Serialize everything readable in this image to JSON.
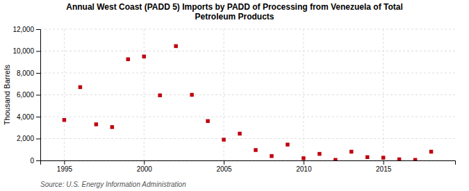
{
  "chart_data": {
    "type": "scatter",
    "title": "Annual West Coast (PADD 5) Imports by PADD of Processing from Venezuela of Total\nPetroleum Products",
    "ylabel": "Thousand Barrels",
    "annotations": [
      "Source: U.S. Energy Information Administration"
    ],
    "x": [
      1995,
      1996,
      1997,
      1998,
      1999,
      2000,
      2001,
      2002,
      2003,
      2004,
      2005,
      2006,
      2007,
      2008,
      2009,
      2010,
      2011,
      2012,
      2013,
      2014,
      2015,
      2016,
      2017,
      2018
    ],
    "values": [
      3700,
      6700,
      3300,
      3050,
      9250,
      9500,
      5950,
      10450,
      6000,
      3600,
      1900,
      2450,
      950,
      400,
      1450,
      200,
      600,
      50,
      800,
      300,
      250,
      100,
      50,
      800
    ],
    "color": "#c00010",
    "marker": "square",
    "xlim": [
      1993.5,
      2019.5
    ],
    "xticks": [
      1995,
      2000,
      2005,
      2010,
      2015
    ],
    "ylim": [
      0,
      12000
    ],
    "yticks": [
      0,
      {
        "value": 2000,
        "label": "2,000"
      },
      {
        "value": 4000,
        "label": "4,000"
      },
      {
        "value": 6000,
        "label": "6,000"
      },
      {
        "value": 8000,
        "label": "8,000"
      },
      {
        "value": 10000,
        "label": "10,000"
      },
      {
        "value": 12000,
        "label": "12,000"
      }
    ],
    "grid": true
  }
}
